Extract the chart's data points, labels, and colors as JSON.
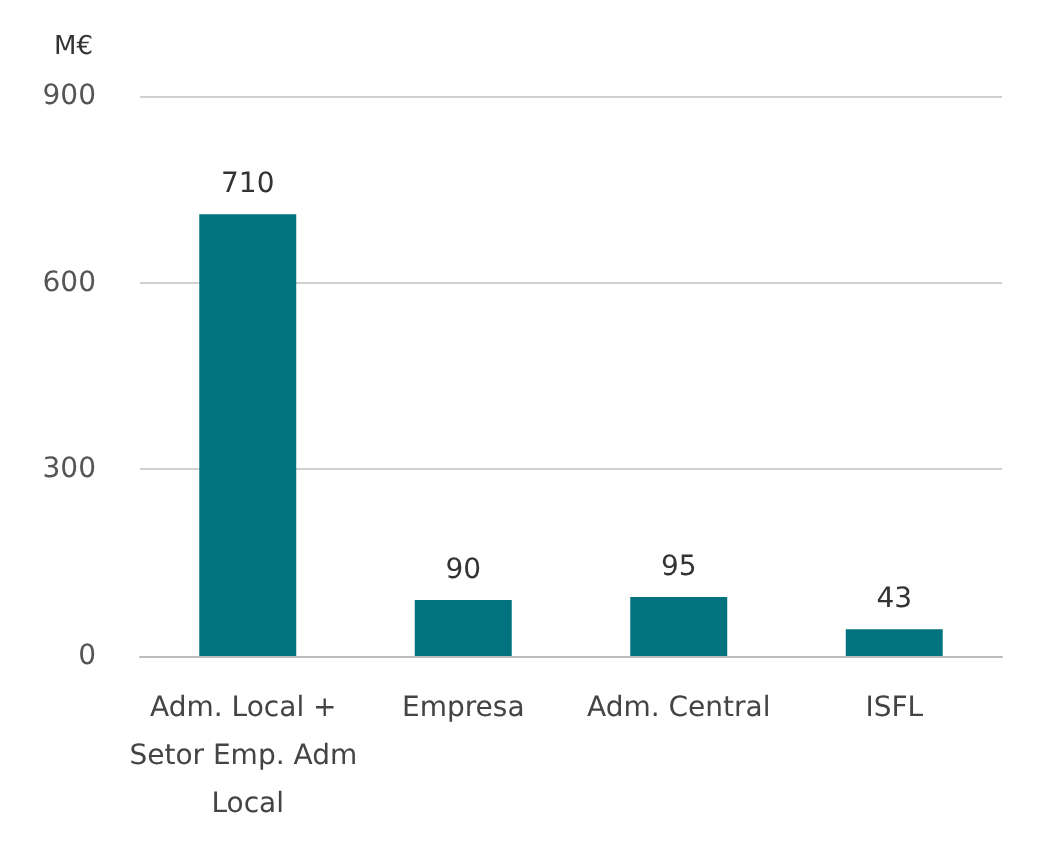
{
  "chart_data": {
    "type": "bar",
    "ylabel": "M€",
    "categories": [
      "Adm. Local + Setor Emp. Adm Local",
      "Empresa",
      "Adm. Central",
      "ISFL"
    ],
    "values": [
      710,
      90,
      95,
      43
    ],
    "color": "#00737f",
    "ylim": [
      0,
      900
    ],
    "yticks": [
      0,
      300,
      600,
      900
    ],
    "grid": "y",
    "data_labels": true
  }
}
